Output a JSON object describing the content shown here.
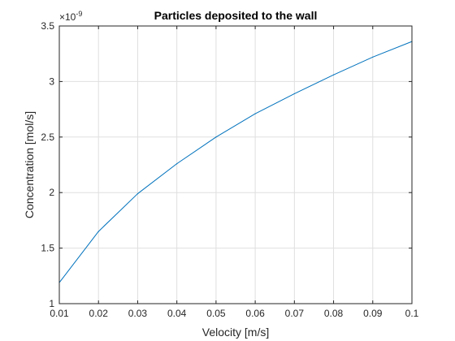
{
  "chart_data": {
    "type": "line",
    "title": "Particles deposited to the wall",
    "xlabel": "Velocity [m/s]",
    "ylabel": "Concentration [mol/s]",
    "y_exponent": {
      "base": "×10",
      "power": "-9"
    },
    "xlim": [
      0.01,
      0.1
    ],
    "ylim": [
      1,
      3.5
    ],
    "x_ticks": [
      0.01,
      0.02,
      0.03,
      0.04,
      0.05,
      0.06,
      0.07,
      0.08,
      0.09,
      0.1
    ],
    "x_tick_labels": [
      "0.01",
      "0.02",
      "0.03",
      "0.04",
      "0.05",
      "0.06",
      "0.07",
      "0.08",
      "0.09",
      "0.1"
    ],
    "y_ticks": [
      1,
      1.5,
      2,
      2.5,
      3,
      3.5
    ],
    "y_tick_labels": [
      "1",
      "1.5",
      "2",
      "2.5",
      "3",
      "3.5"
    ],
    "grid": true,
    "series": [
      {
        "color": "#0072bd",
        "x": [
          0.01,
          0.02,
          0.03,
          0.04,
          0.05,
          0.06,
          0.07,
          0.08,
          0.09,
          0.1
        ],
        "values": [
          1.19,
          1.65,
          1.99,
          2.26,
          2.5,
          2.71,
          2.89,
          3.06,
          3.22,
          3.36
        ]
      }
    ]
  }
}
